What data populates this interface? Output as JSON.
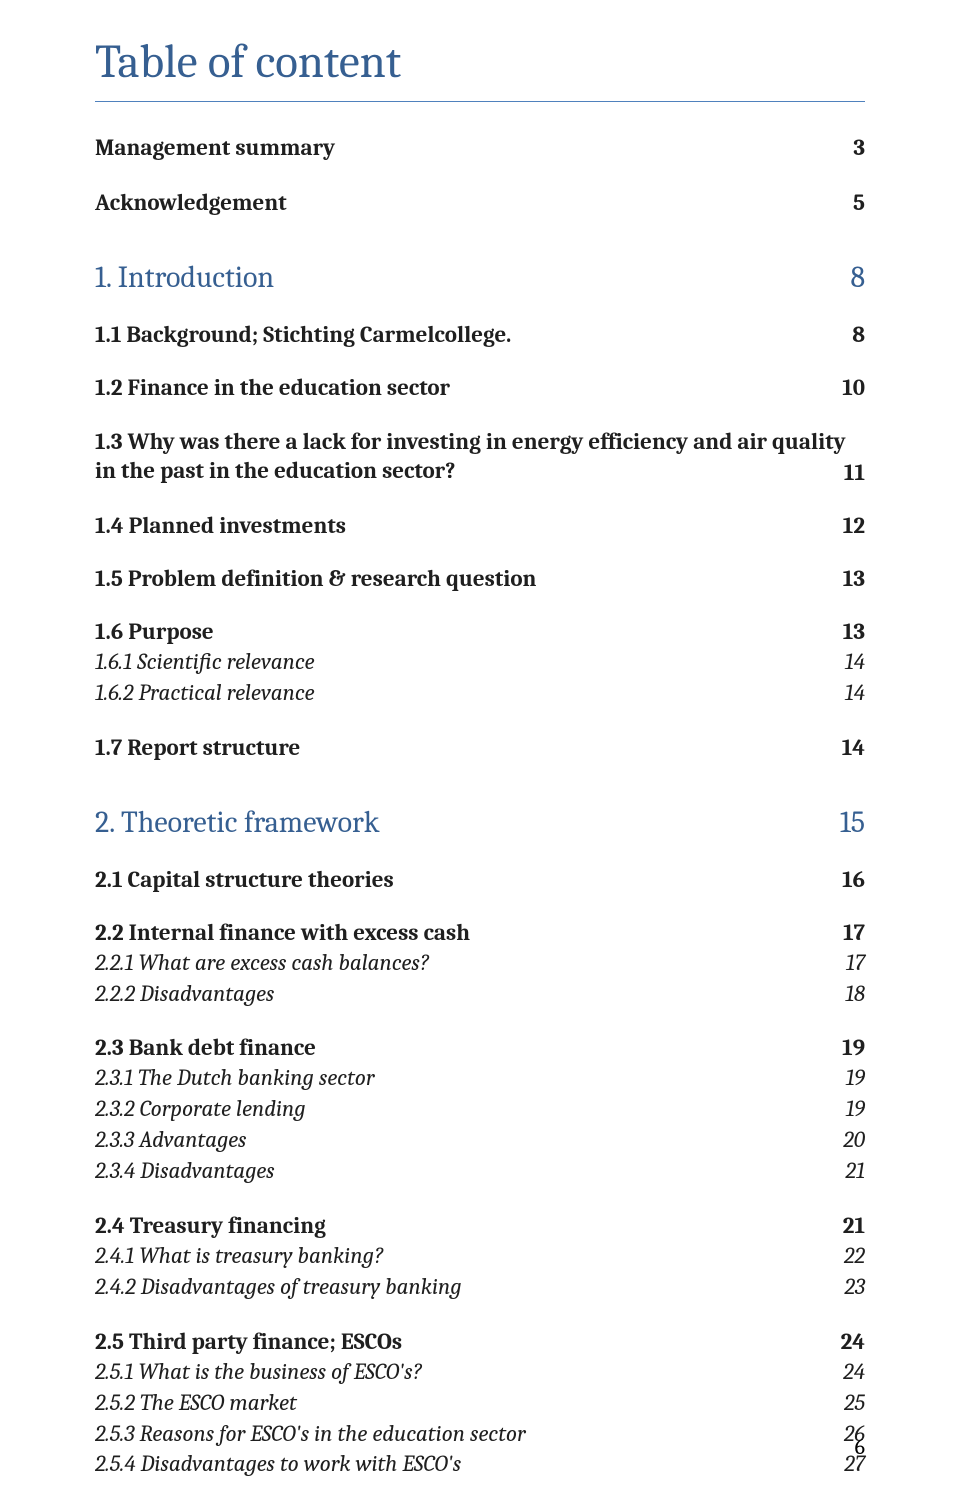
{
  "title": "Table of content",
  "pageNumber": "6",
  "entries": [
    {
      "level": "main",
      "label": "Management summary",
      "page": "3",
      "firstMain": true
    },
    {
      "level": "main",
      "label": "Acknowledgement",
      "page": "5"
    },
    {
      "level": "section",
      "label": "1. Introduction",
      "page": "8"
    },
    {
      "level": "sub",
      "label": "1.1 Background; Stichting Carmelcollege.",
      "page": "8"
    },
    {
      "level": "sub",
      "label": "1.2 Finance in the education sector",
      "page": "10"
    },
    {
      "level": "sub-multiline",
      "label": "1.3 Why was there a lack for investing in energy efficiency and air quality in the past in the education sector?",
      "page": "11"
    },
    {
      "level": "sub",
      "label": "1.4 Planned investments",
      "page": "12"
    },
    {
      "level": "sub",
      "label": "1.5 Problem definition & research question",
      "page": "13"
    },
    {
      "level": "sub",
      "label": "1.6 Purpose",
      "page": "13"
    },
    {
      "level": "italic",
      "label": "1.6.1 Scientific relevance",
      "page": "14"
    },
    {
      "level": "italic",
      "label": "1.6.2 Practical relevance",
      "page": "14"
    },
    {
      "level": "sub",
      "label": "1.7 Report structure",
      "page": "14"
    },
    {
      "level": "section",
      "label": "2. Theoretic framework",
      "page": "15"
    },
    {
      "level": "sub",
      "label": "2.1 Capital structure theories",
      "page": "16"
    },
    {
      "level": "sub",
      "label": "2.2 Internal finance with excess cash",
      "page": "17"
    },
    {
      "level": "italic",
      "label": "2.2.1 What are excess cash balances?",
      "page": "17"
    },
    {
      "level": "italic",
      "label": "2.2.2 Disadvantages",
      "page": "18"
    },
    {
      "level": "sub",
      "label": "2.3 Bank debt finance",
      "page": "19"
    },
    {
      "level": "italic",
      "label": "2.3.1 The Dutch banking sector",
      "page": "19"
    },
    {
      "level": "italic",
      "label": "2.3.2 Corporate lending",
      "page": "19"
    },
    {
      "level": "italic",
      "label": "2.3.3 Advantages",
      "page": "20"
    },
    {
      "level": "italic",
      "label": "2.3.4 Disadvantages",
      "page": "21"
    },
    {
      "level": "sub",
      "label": "2.4 Treasury financing",
      "page": "21"
    },
    {
      "level": "italic",
      "label": "2.4.1 What is treasury banking?",
      "page": "22"
    },
    {
      "level": "italic",
      "label": "2.4.2 Disadvantages of treasury banking",
      "page": "23"
    },
    {
      "level": "sub",
      "label": "2.5 Third party finance; ESCOs",
      "page": "24"
    },
    {
      "level": "italic",
      "label": "2.5.1 What is the business of ESCO's?",
      "page": "24"
    },
    {
      "level": "italic",
      "label": "2.5.2 The ESCO market",
      "page": "25"
    },
    {
      "level": "italic",
      "label": "2.5.3 Reasons for ESCO's in the education sector",
      "page": "26"
    },
    {
      "level": "italic",
      "label": "2.5.4 Disadvantages to work with ESCO's",
      "page": "27"
    }
  ]
}
